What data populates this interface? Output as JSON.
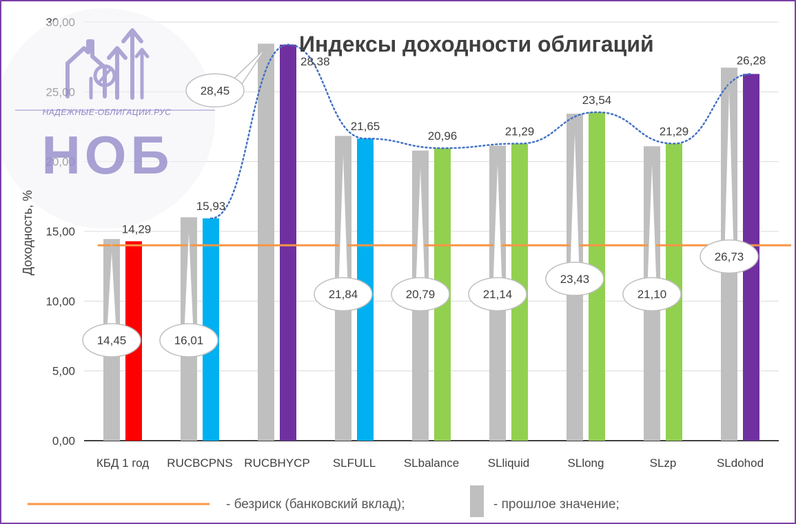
{
  "chart_data": {
    "type": "bar",
    "title": "Индексы доходности облигаций",
    "ylabel": "Доходность, %",
    "xlabel": "",
    "ylim": [
      0,
      30
    ],
    "yticks": [
      "0,00",
      "5,00",
      "10,00",
      "15,00",
      "20,00",
      "25,00",
      "30,00"
    ],
    "categories": [
      "КБД 1 год",
      "RUCBCPNS",
      "RUCBHYCP",
      "SLFULL",
      "SLbalance",
      "SLliquid",
      "SLlong",
      "SLzp",
      "SLdohod"
    ],
    "series": [
      {
        "name": "- прошлое значение;",
        "values": [
          14.45,
          16.01,
          28.45,
          21.84,
          20.79,
          21.14,
          23.43,
          21.1,
          26.73
        ],
        "labels": [
          "14,45",
          "16,01",
          "28,45",
          "21,84",
          "20,79",
          "21,14",
          "23,43",
          "21,10",
          "26,73"
        ],
        "color": "#bfbfbf"
      },
      {
        "values": [
          14.29,
          15.93,
          28.38,
          21.65,
          20.96,
          21.29,
          23.54,
          21.29,
          26.28
        ],
        "labels": [
          "14,29",
          "15,93",
          "28,38",
          "21,65",
          "20,96",
          "21,29",
          "23,54",
          "21,29",
          "26,28"
        ],
        "colors": [
          "#ff0000",
          "#00b0f0",
          "#7030a0",
          "#00b0f0",
          "#92d050",
          "#92d050",
          "#92d050",
          "#92d050",
          "#7030a0"
        ]
      }
    ],
    "reference_line": {
      "name": "- безриск (банковский вклад);",
      "value": 14.0,
      "color": "#f79646"
    },
    "trend_line": {
      "style": "dotted",
      "color": "#4472c4"
    },
    "grid": true,
    "legend": "bottom"
  },
  "watermark": {
    "site_text": "НАДЕЖНЫЕ-ОБЛИГАЦИИ.РУС",
    "brand_text": "НОБ",
    "icon": "house-percent-arrows-icon",
    "color": "#8e84c6"
  },
  "colors": {
    "frame": "#7b3fa8",
    "grid": "#d9d9d9",
    "axis": "#000000"
  }
}
